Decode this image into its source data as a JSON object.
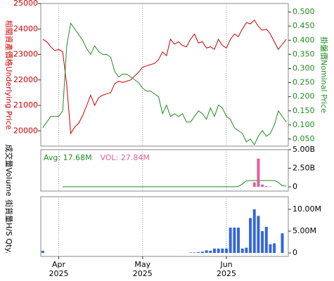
{
  "chart_data": [
    {
      "type": "line",
      "ylabel": "相關資產價格Underlying Price",
      "y2label": "掛盤價Nominal Price",
      "ylim": [
        19400,
        25000
      ],
      "yticks": [
        20000,
        21000,
        22000,
        23000,
        24000,
        25000
      ],
      "y2lim": [
        0.025,
        0.53
      ],
      "y2ticks": [
        {
          "value": 0.05,
          "label": "0.050"
        },
        {
          "value": 0.1,
          "label": "0.100"
        },
        {
          "value": 0.15,
          "label": "0.150"
        },
        {
          "value": 0.2,
          "label": "0.200"
        },
        {
          "value": 0.25,
          "label": "0.250"
        },
        {
          "value": 0.3,
          "label": "0.300"
        },
        {
          "value": 0.35,
          "label": "0.350"
        },
        {
          "value": 0.4,
          "label": "0.400"
        },
        {
          "value": 0.45,
          "label": "0.450"
        },
        {
          "value": 0.5,
          "label": "0.500"
        }
      ],
      "series": [
        {
          "color": "#cc0000",
          "axis": "y",
          "values": [
            23600,
            23500,
            23300,
            23150,
            23200,
            23100,
            21800,
            19900,
            20150,
            20300,
            20600,
            21000,
            21400,
            21000,
            21300,
            21400,
            21450,
            21500,
            21850,
            21950,
            21900,
            21950,
            22000,
            22150,
            22300,
            22500,
            22550,
            22600,
            22650,
            22800,
            23100,
            22950,
            23600,
            23400,
            23500,
            23350,
            23300,
            23600,
            23800,
            23450,
            23500,
            23250,
            23300,
            23200,
            23600,
            23350,
            23250,
            23600,
            23800,
            23700,
            24000,
            24250,
            24200,
            24350,
            24100,
            23950,
            24000,
            23800,
            23500,
            23200,
            23400,
            23600
          ]
        },
        {
          "color": "#228b22",
          "axis": "y2",
          "values": [
            0.09,
            0.11,
            0.13,
            0.13,
            0.13,
            0.15,
            0.38,
            0.46,
            0.44,
            0.42,
            0.4,
            0.37,
            0.35,
            0.38,
            0.36,
            0.35,
            0.35,
            0.34,
            0.29,
            0.27,
            0.28,
            0.28,
            0.27,
            0.26,
            0.25,
            0.23,
            0.22,
            0.22,
            0.21,
            0.2,
            0.14,
            0.17,
            0.13,
            0.14,
            0.13,
            0.14,
            0.11,
            0.11,
            0.13,
            0.15,
            0.14,
            0.12,
            0.16,
            0.13,
            0.17,
            0.16,
            0.13,
            0.12,
            0.09,
            0.08,
            0.07,
            0.04,
            0.05,
            0.03,
            0.06,
            0.08,
            0.06,
            0.07,
            0.1,
            0.15,
            0.13,
            0.11
          ]
        }
      ]
    },
    {
      "type": "bar",
      "ylabel": "成交量Volume",
      "y_axis_position": "right",
      "ylim": [
        -570000000,
        5000000000
      ],
      "yticks": [
        0,
        {
          "value": 2500000000,
          "label": "2.50B"
        },
        {
          "value": 5000000000,
          "label": "5.00B"
        }
      ],
      "series": [
        {
          "name": "Avg: 17.68M",
          "type": "line",
          "color": "#228b22",
          "values": [
            null,
            null,
            null,
            null,
            null,
            10000000,
            10000000,
            10000000,
            10000000,
            10000000,
            10000000,
            10000000,
            10000000,
            10000000,
            10000000,
            10000000,
            10000000,
            10000000,
            10000000,
            10000000,
            10000000,
            10000000,
            10000000,
            10000000,
            10000000,
            10000000,
            10000000,
            10000000,
            10000000,
            10000000,
            10000000,
            10000000,
            10000000,
            10000000,
            10000000,
            10000000,
            10000000,
            10000000,
            10000000,
            10000000,
            10000000,
            10000000,
            10000000,
            10000000,
            10000000,
            10000000,
            10000000,
            10000000,
            10000000,
            30000000,
            400000000,
            800000000,
            850000000,
            850000000,
            850000000,
            850000000,
            850000000,
            850000000,
            850000000,
            600000000,
            150000000,
            100000000
          ]
        },
        {
          "name": "VOL: 27.84M",
          "type": "bar",
          "color": "#e0609a",
          "values": [
            0,
            0,
            0,
            0,
            0,
            0,
            0,
            0,
            0,
            0,
            0,
            0,
            0,
            0,
            0,
            0,
            0,
            0,
            0,
            0,
            0,
            0,
            0,
            0,
            0,
            0,
            0,
            0,
            0,
            0,
            0,
            0,
            0,
            0,
            0,
            0,
            0,
            0,
            0,
            0,
            0,
            0,
            0,
            0,
            0,
            0,
            0,
            0,
            0,
            0,
            0,
            0,
            0,
            600000000,
            3800000000,
            300000000,
            100000000,
            50000000,
            0,
            0,
            0,
            0
          ]
        }
      ]
    },
    {
      "type": "bar",
      "ylabel": "街貨量H/S Qty.",
      "y_axis_position": "right",
      "ylim": [
        -800000,
        12900000
      ],
      "yticks": [
        0,
        {
          "value": 5000000,
          "label": "5.00M"
        },
        {
          "value": 10000000,
          "label": "10.00M"
        }
      ],
      "color": "#3366dd",
      "categories": [
        null,
        null,
        null,
        null,
        "Apr\n2025",
        null,
        null,
        null,
        null,
        null,
        null,
        null,
        null,
        null,
        null,
        null,
        null,
        null,
        null,
        null,
        null,
        null,
        null,
        null,
        null,
        "May\n2025",
        null,
        null,
        null,
        null,
        null,
        null,
        null,
        null,
        null,
        null,
        null,
        null,
        null,
        null,
        null,
        null,
        null,
        null,
        null,
        null,
        "Jun\n2025",
        null,
        null,
        null,
        null,
        null,
        null,
        null,
        null,
        null,
        null,
        null,
        null,
        null,
        null,
        null
      ],
      "values": [
        500000,
        0,
        0,
        0,
        0,
        0,
        0,
        0,
        0,
        0,
        0,
        0,
        0,
        0,
        0,
        0,
        0,
        0,
        0,
        0,
        0,
        0,
        0,
        0,
        0,
        0,
        0,
        0,
        0,
        0,
        0,
        0,
        0,
        0,
        0,
        0,
        0,
        100000,
        100000,
        200000,
        300000,
        600000,
        500000,
        1000000,
        1000000,
        1000000,
        1000000,
        5800000,
        5800000,
        5800000,
        1000000,
        1200000,
        8000000,
        10000000,
        8500000,
        5000000,
        6000000,
        2000000,
        2200000,
        0,
        4500000,
        0
      ]
    }
  ]
}
